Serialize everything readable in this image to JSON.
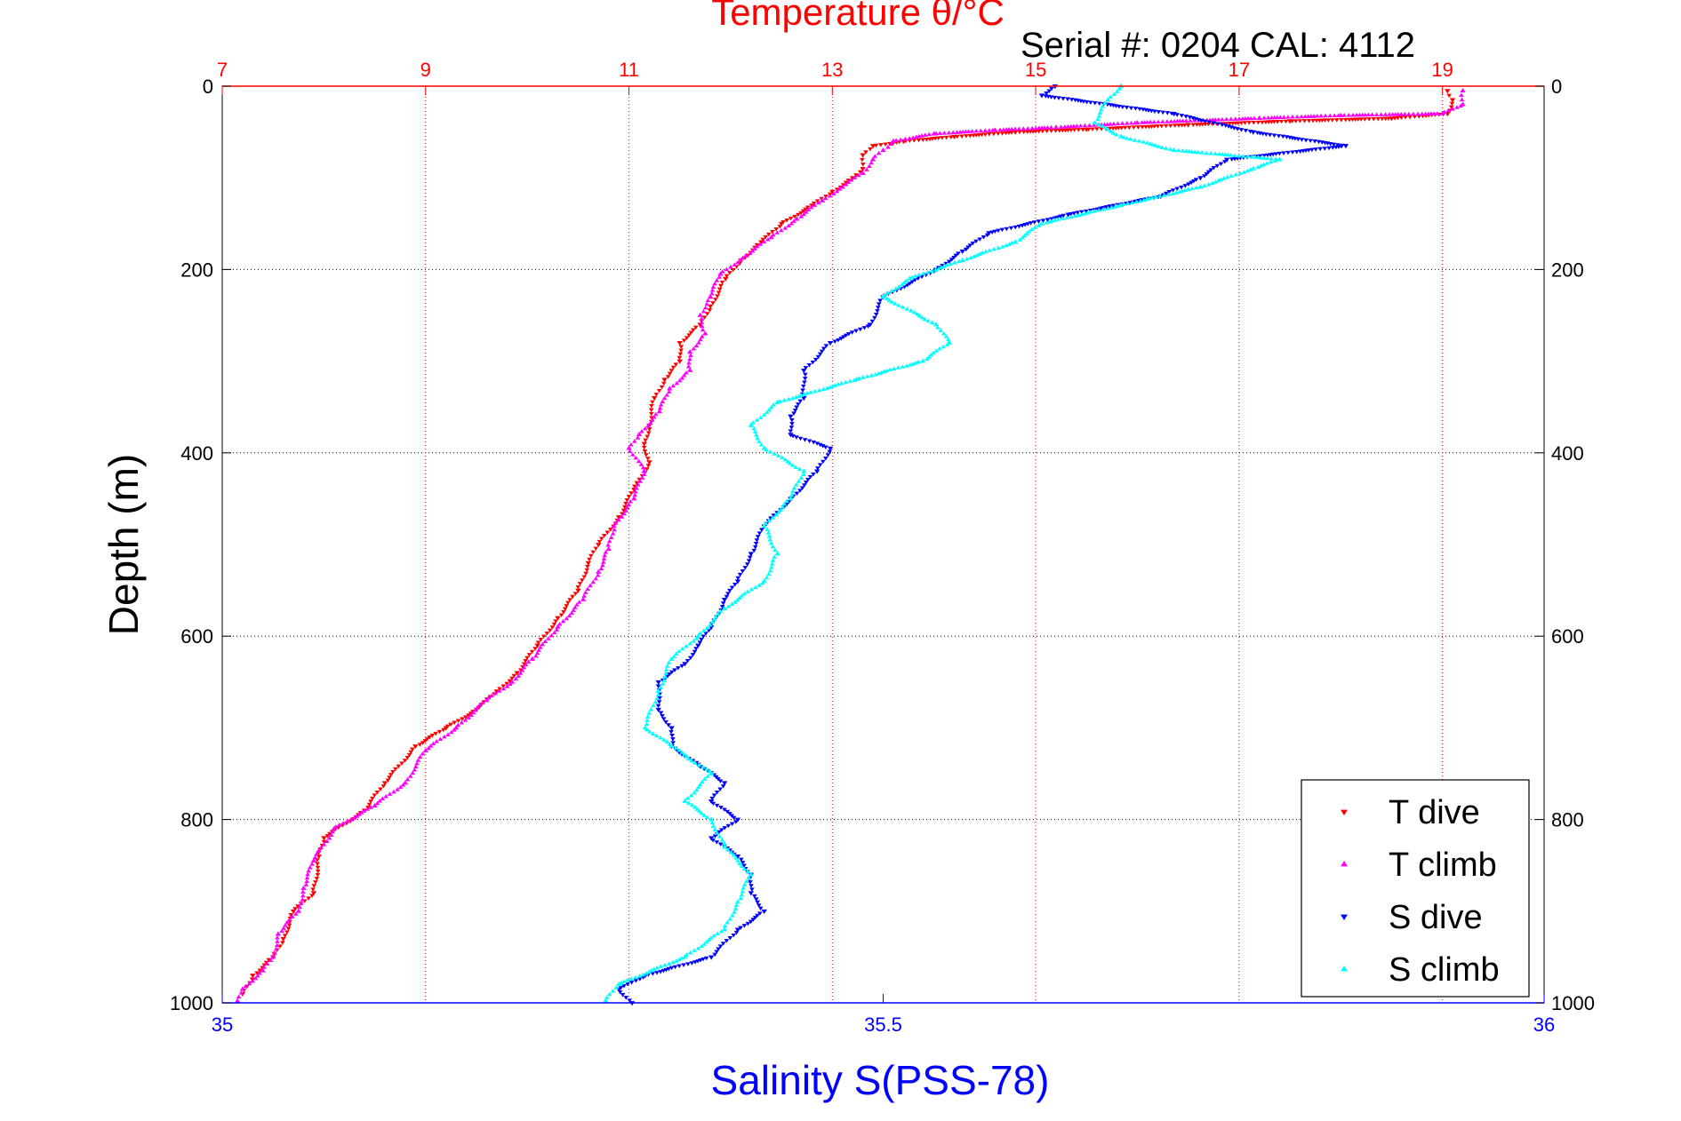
{
  "chart_data": {
    "type": "scatter",
    "title_top": "Temperature θ/°C",
    "subtitle": "Serial #: 0204  CAL: 4112",
    "ylabel": "Depth (m)",
    "xlabel_bottom": "Salinity S(PSS-78)",
    "ylim": [
      0,
      1000
    ],
    "y_reversed": true,
    "temp_xlim": [
      7,
      20
    ],
    "sal_xlim": [
      35,
      36
    ],
    "yticks": [
      "0",
      "200",
      "400",
      "600",
      "800",
      "1000"
    ],
    "temp_ticks": [
      "7",
      "9",
      "11",
      "13",
      "15",
      "17",
      "19"
    ],
    "sal_ticks": [
      "35",
      "35.5",
      "36"
    ],
    "grid": true,
    "legend_position": "bottom-right",
    "colors": {
      "t_dive": "#ff0000",
      "t_climb": "#ff00ff",
      "s_dive": "#0000ff",
      "s_climb": "#00ffff",
      "temp_axis": "#ff0000",
      "sal_axis": "#0000ff"
    },
    "series": [
      {
        "name": "T dive",
        "axis": "temp",
        "marker": "triangle-down",
        "color": "#ff0000",
        "points": [
          [
            19.05,
            5
          ],
          [
            19.1,
            15
          ],
          [
            19.05,
            30
          ],
          [
            18.5,
            35
          ],
          [
            17.5,
            38
          ],
          [
            16.5,
            42
          ],
          [
            15.5,
            47
          ],
          [
            14.8,
            50
          ],
          [
            14.2,
            55
          ],
          [
            13.7,
            60
          ],
          [
            13.4,
            65
          ],
          [
            13.3,
            75
          ],
          [
            13.3,
            90
          ],
          [
            13.2,
            100
          ],
          [
            13.0,
            115
          ],
          [
            12.8,
            130
          ],
          [
            12.5,
            150
          ],
          [
            12.3,
            170
          ],
          [
            12.1,
            190
          ],
          [
            11.95,
            210
          ],
          [
            11.8,
            240
          ],
          [
            11.7,
            260
          ],
          [
            11.5,
            280
          ],
          [
            11.5,
            300
          ],
          [
            11.35,
            320
          ],
          [
            11.25,
            340
          ],
          [
            11.2,
            370
          ],
          [
            11.15,
            390
          ],
          [
            11.2,
            410
          ],
          [
            11.05,
            440
          ],
          [
            10.9,
            470
          ],
          [
            10.7,
            500
          ],
          [
            10.6,
            520
          ],
          [
            10.5,
            550
          ],
          [
            10.3,
            580
          ],
          [
            10.1,
            610
          ],
          [
            9.9,
            640
          ],
          [
            9.7,
            660
          ],
          [
            9.5,
            680
          ],
          [
            9.2,
            700
          ],
          [
            8.9,
            720
          ],
          [
            8.6,
            760
          ],
          [
            8.4,
            790
          ],
          [
            8.0,
            820
          ],
          [
            7.95,
            840
          ],
          [
            7.9,
            880
          ],
          [
            7.7,
            900
          ],
          [
            7.6,
            930
          ],
          [
            7.5,
            950
          ],
          [
            7.3,
            970
          ],
          [
            7.2,
            990
          ]
        ]
      },
      {
        "name": "T climb",
        "axis": "temp",
        "marker": "triangle-up",
        "color": "#ff00ff",
        "points": [
          [
            19.2,
            5
          ],
          [
            19.2,
            20
          ],
          [
            19.0,
            30
          ],
          [
            18.0,
            32
          ],
          [
            17.2,
            35
          ],
          [
            16.0,
            40
          ],
          [
            15.2,
            45
          ],
          [
            14.6,
            48
          ],
          [
            14.0,
            52
          ],
          [
            13.6,
            60
          ],
          [
            13.5,
            70
          ],
          [
            13.4,
            80
          ],
          [
            13.3,
            95
          ],
          [
            13.1,
            110
          ],
          [
            12.9,
            125
          ],
          [
            12.65,
            145
          ],
          [
            12.4,
            165
          ],
          [
            12.15,
            185
          ],
          [
            11.9,
            205
          ],
          [
            11.8,
            230
          ],
          [
            11.7,
            250
          ],
          [
            11.75,
            270
          ],
          [
            11.6,
            290
          ],
          [
            11.6,
            310
          ],
          [
            11.4,
            330
          ],
          [
            11.3,
            355
          ],
          [
            11.1,
            380
          ],
          [
            11.0,
            395
          ],
          [
            11.15,
            420
          ],
          [
            11.05,
            450
          ],
          [
            10.85,
            480
          ],
          [
            10.8,
            505
          ],
          [
            10.7,
            530
          ],
          [
            10.55,
            560
          ],
          [
            10.3,
            590
          ],
          [
            10.05,
            625
          ],
          [
            9.85,
            650
          ],
          [
            9.6,
            670
          ],
          [
            9.3,
            700
          ],
          [
            9.0,
            725
          ],
          [
            8.8,
            760
          ],
          [
            8.5,
            785
          ],
          [
            8.1,
            810
          ],
          [
            7.9,
            845
          ],
          [
            7.8,
            875
          ],
          [
            7.75,
            900
          ],
          [
            7.55,
            925
          ],
          [
            7.5,
            950
          ],
          [
            7.4,
            965
          ],
          [
            7.2,
            985
          ],
          [
            7.15,
            998
          ]
        ]
      },
      {
        "name": "S dive",
        "axis": "sal",
        "marker": "triangle-down",
        "color": "#0000ff",
        "points": [
          [
            35.63,
            0
          ],
          [
            35.62,
            10
          ],
          [
            35.72,
            30
          ],
          [
            35.78,
            50
          ],
          [
            35.85,
            65
          ],
          [
            35.76,
            80
          ],
          [
            35.74,
            100
          ],
          [
            35.71,
            120
          ],
          [
            35.64,
            140
          ],
          [
            35.58,
            160
          ],
          [
            35.56,
            180
          ],
          [
            35.54,
            200
          ],
          [
            35.5,
            230
          ],
          [
            35.49,
            260
          ],
          [
            35.46,
            280
          ],
          [
            35.44,
            310
          ],
          [
            35.44,
            340
          ],
          [
            35.43,
            360
          ],
          [
            35.43,
            380
          ],
          [
            35.46,
            395
          ],
          [
            35.45,
            420
          ],
          [
            35.43,
            450
          ],
          [
            35.41,
            480
          ],
          [
            35.4,
            510
          ],
          [
            35.39,
            540
          ],
          [
            35.38,
            560
          ],
          [
            35.37,
            590
          ],
          [
            35.36,
            610
          ],
          [
            35.35,
            630
          ],
          [
            35.33,
            650
          ],
          [
            35.33,
            680
          ],
          [
            35.34,
            700
          ],
          [
            35.34,
            720
          ],
          [
            35.36,
            740
          ],
          [
            35.38,
            760
          ],
          [
            35.37,
            780
          ],
          [
            35.39,
            800
          ],
          [
            35.37,
            820
          ],
          [
            35.39,
            840
          ],
          [
            35.4,
            860
          ],
          [
            35.4,
            880
          ],
          [
            35.41,
            900
          ],
          [
            35.39,
            920
          ],
          [
            35.37,
            950
          ],
          [
            35.32,
            970
          ],
          [
            35.3,
            985
          ],
          [
            35.31,
            1000
          ]
        ]
      },
      {
        "name": "S climb",
        "axis": "sal",
        "marker": "triangle-up",
        "color": "#00ffff",
        "points": [
          [
            35.68,
            0
          ],
          [
            35.67,
            15
          ],
          [
            35.66,
            40
          ],
          [
            35.68,
            55
          ],
          [
            35.72,
            70
          ],
          [
            35.8,
            80
          ],
          [
            35.78,
            90
          ],
          [
            35.74,
            110
          ],
          [
            35.68,
            130
          ],
          [
            35.62,
            150
          ],
          [
            35.6,
            170
          ],
          [
            35.56,
            190
          ],
          [
            35.52,
            210
          ],
          [
            35.5,
            230
          ],
          [
            35.54,
            260
          ],
          [
            35.55,
            280
          ],
          [
            35.53,
            300
          ],
          [
            35.48,
            320
          ],
          [
            35.42,
            345
          ],
          [
            35.4,
            370
          ],
          [
            35.41,
            395
          ],
          [
            35.44,
            420
          ],
          [
            35.43,
            450
          ],
          [
            35.41,
            480
          ],
          [
            35.42,
            510
          ],
          [
            35.41,
            540
          ],
          [
            35.38,
            570
          ],
          [
            35.36,
            600
          ],
          [
            35.34,
            625
          ],
          [
            35.33,
            660
          ],
          [
            35.32,
            700
          ],
          [
            35.34,
            720
          ],
          [
            35.37,
            750
          ],
          [
            35.35,
            780
          ],
          [
            35.37,
            800
          ],
          [
            35.38,
            830
          ],
          [
            35.4,
            860
          ],
          [
            35.39,
            890
          ],
          [
            35.38,
            920
          ],
          [
            35.35,
            950
          ],
          [
            35.3,
            980
          ],
          [
            35.29,
            998
          ]
        ]
      }
    ]
  }
}
